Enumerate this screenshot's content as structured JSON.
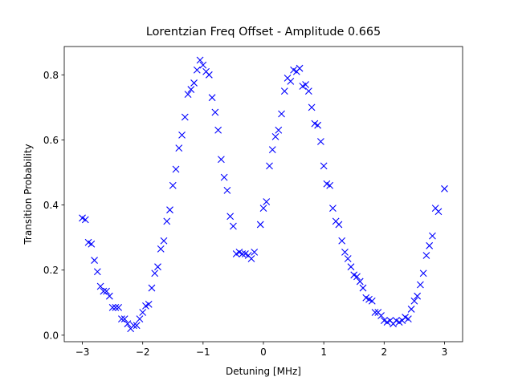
{
  "chart_data": {
    "type": "scatter",
    "title": "Lorentzian Freq Offset - Amplitude 0.665",
    "x_label": "Detuning [MHz]",
    "y_label": "Transition Probability",
    "xlim": [
      -3.3,
      3.3
    ],
    "ylim": [
      -0.02,
      0.887
    ],
    "xticks": [
      {
        "value": -3,
        "label": "−3"
      },
      {
        "value": -2,
        "label": "−2"
      },
      {
        "value": -1,
        "label": "−1"
      },
      0,
      1,
      2,
      3
    ],
    "yticks": [
      {
        "value": 0,
        "label": "0.0"
      },
      0.2,
      0.4,
      0.6,
      0.8
    ],
    "marker": "x",
    "color": "#0000ff",
    "x": [
      -3.0,
      -2.95,
      -2.9,
      -2.85,
      -2.8,
      -2.75,
      -2.7,
      -2.65,
      -2.6,
      -2.55,
      -2.5,
      -2.45,
      -2.4,
      -2.35,
      -2.3,
      -2.25,
      -2.2,
      -2.15,
      -2.1,
      -2.05,
      -2.0,
      -1.95,
      -1.9,
      -1.85,
      -1.8,
      -1.75,
      -1.7,
      -1.65,
      -1.6,
      -1.55,
      -1.5,
      -1.45,
      -1.4,
      -1.35,
      -1.3,
      -1.25,
      -1.2,
      -1.15,
      -1.1,
      -1.05,
      -1.0,
      -0.95,
      -0.9,
      -0.85,
      -0.8,
      -0.75,
      -0.7,
      -0.65,
      -0.6,
      -0.55,
      -0.5,
      -0.45,
      -0.4,
      -0.35,
      -0.3,
      -0.25,
      -0.2,
      -0.15,
      -0.05,
      0.0,
      0.05,
      0.1,
      0.15,
      0.2,
      0.25,
      0.3,
      0.35,
      0.4,
      0.45,
      0.5,
      0.55,
      0.6,
      0.65,
      0.7,
      0.75,
      0.8,
      0.85,
      0.9,
      0.95,
      1.0,
      1.05,
      1.1,
      1.15,
      1.2,
      1.25,
      1.3,
      1.35,
      1.4,
      1.45,
      1.5,
      1.55,
      1.6,
      1.65,
      1.7,
      1.75,
      1.8,
      1.85,
      1.9,
      1.95,
      2.0,
      2.05,
      2.1,
      2.15,
      2.2,
      2.25,
      2.3,
      2.35,
      2.4,
      2.45,
      2.5,
      2.55,
      2.6,
      2.65,
      2.7,
      2.75,
      2.8,
      2.85,
      2.9,
      3.0
    ],
    "y": [
      0.36,
      0.355,
      0.285,
      0.28,
      0.23,
      0.195,
      0.15,
      0.135,
      0.135,
      0.12,
      0.085,
      0.085,
      0.085,
      0.05,
      0.05,
      0.035,
      0.02,
      0.03,
      0.03,
      0.05,
      0.07,
      0.09,
      0.095,
      0.145,
      0.19,
      0.21,
      0.265,
      0.29,
      0.35,
      0.385,
      0.46,
      0.51,
      0.575,
      0.615,
      0.67,
      0.74,
      0.755,
      0.775,
      0.815,
      0.845,
      0.83,
      0.81,
      0.8,
      0.73,
      0.685,
      0.63,
      0.54,
      0.485,
      0.445,
      0.365,
      0.335,
      0.25,
      0.255,
      0.25,
      0.25,
      0.245,
      0.235,
      0.255,
      0.34,
      0.39,
      0.41,
      0.52,
      0.57,
      0.61,
      0.63,
      0.68,
      0.75,
      0.79,
      0.78,
      0.815,
      0.81,
      0.82,
      0.765,
      0.77,
      0.75,
      0.7,
      0.65,
      0.645,
      0.595,
      0.52,
      0.465,
      0.46,
      0.39,
      0.35,
      0.34,
      0.29,
      0.255,
      0.235,
      0.21,
      0.185,
      0.18,
      0.165,
      0.145,
      0.115,
      0.11,
      0.105,
      0.07,
      0.07,
      0.06,
      0.045,
      0.04,
      0.045,
      0.035,
      0.045,
      0.04,
      0.045,
      0.055,
      0.05,
      0.08,
      0.105,
      0.12,
      0.155,
      0.19,
      0.245,
      0.275,
      0.305,
      0.39,
      0.38,
      0.45
    ]
  }
}
